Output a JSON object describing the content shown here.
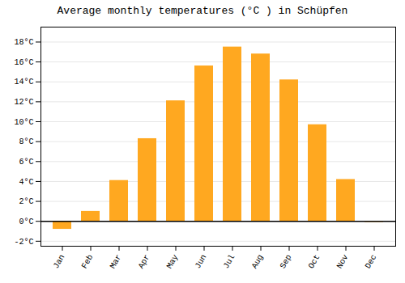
{
  "chart_data": {
    "type": "bar",
    "title": "Average monthly temperatures (°C ) in Schüpfen",
    "categories": [
      "Jan",
      "Feb",
      "Mar",
      "Apr",
      "May",
      "Jun",
      "Jul",
      "Aug",
      "Sep",
      "Oct",
      "Nov",
      "Dec"
    ],
    "values": [
      -0.8,
      1.0,
      4.1,
      8.3,
      12.1,
      15.6,
      17.5,
      16.8,
      14.2,
      9.7,
      4.2,
      -0.1
    ],
    "color": "#FFA820",
    "ylim": [
      -2.5,
      19.5
    ],
    "yticks": [
      {
        "value": -2,
        "label": "-2°C"
      },
      {
        "value": 0,
        "label": "0°C"
      },
      {
        "value": 2,
        "label": "2°C"
      },
      {
        "value": 4,
        "label": "4°C"
      },
      {
        "value": 6,
        "label": "6°C"
      },
      {
        "value": 8,
        "label": "8°C"
      },
      {
        "value": 10,
        "label": "10°C"
      },
      {
        "value": 12,
        "label": "12°C"
      },
      {
        "value": 14,
        "label": "14°C"
      },
      {
        "value": 16,
        "label": "16°C"
      },
      {
        "value": 18,
        "label": "18°C"
      }
    ],
    "grid": true
  }
}
